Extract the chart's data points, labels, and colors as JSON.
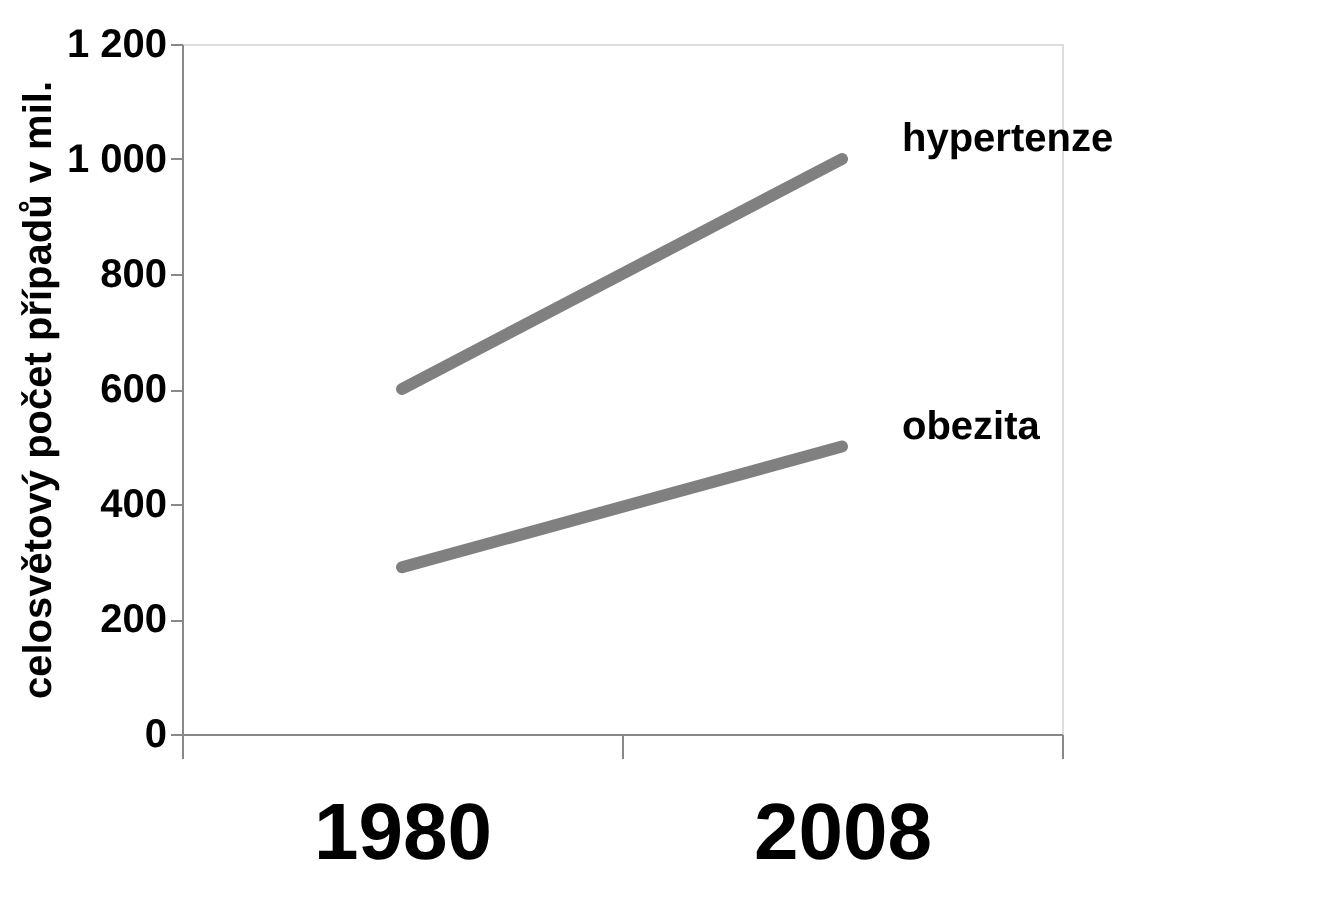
{
  "chart_data": {
    "type": "line",
    "ylabel": "celosvětový počet případů v mil.",
    "categories": [
      "1980",
      "2008"
    ],
    "series": [
      {
        "name": "hypertenze",
        "color": "#808080",
        "values": [
          600,
          1000
        ]
      },
      {
        "name": "obezita",
        "color": "#808080",
        "values": [
          290,
          500
        ]
      }
    ],
    "ylim": [
      0,
      1200
    ],
    "yticks": [
      0,
      200,
      400,
      600,
      800,
      {
        "value": 1000,
        "label": "1 000"
      },
      {
        "value": 1200,
        "label": "1 200"
      }
    ],
    "grid": false,
    "legend": false,
    "marker": "none",
    "line_style": "solid"
  }
}
